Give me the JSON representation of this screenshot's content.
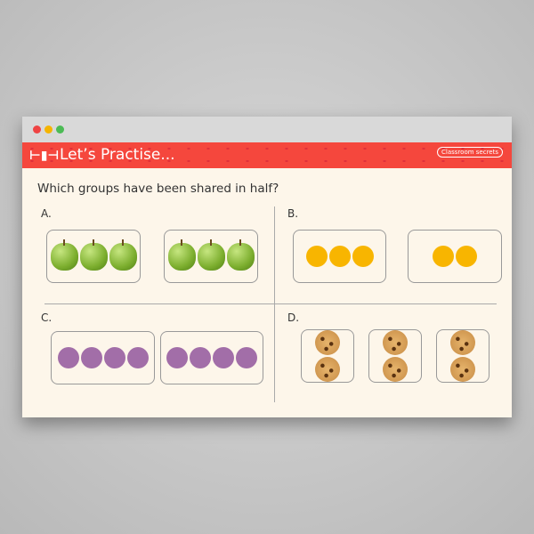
{
  "window": {
    "title": "Let’s Practise...",
    "logo": "Classroom secrets"
  },
  "question": "Which groups have been shared in half?",
  "colors": {
    "header": "#f5473d",
    "orange": "#f8b500",
    "purple": "#a26ea8"
  },
  "options": [
    {
      "label": "A.",
      "item": "apple",
      "groups": [
        3,
        3
      ]
    },
    {
      "label": "B.",
      "item": "orange-circle",
      "groups": [
        3,
        2
      ]
    },
    {
      "label": "C.",
      "item": "purple-circle",
      "groups": [
        4,
        4
      ]
    },
    {
      "label": "D.",
      "item": "cookie",
      "groups": [
        2,
        2,
        2
      ]
    }
  ]
}
